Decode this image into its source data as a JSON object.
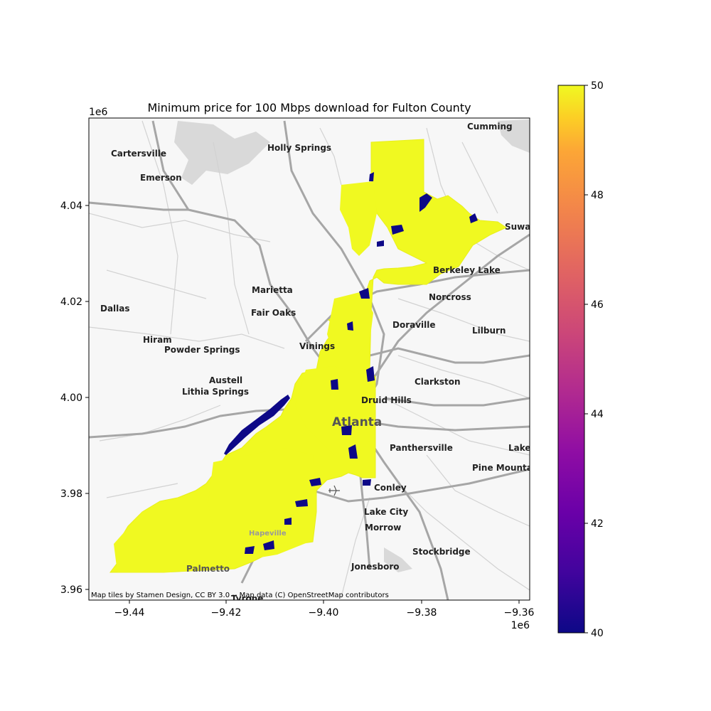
{
  "title": "Minimum price for 100 Mbps download for Fulton County",
  "attribution": "Map tiles by Stamen Design, CC BY 3.0 -- Map data (C) OpenStreetMap contributors",
  "axes": {
    "x_offset_label": "1e6",
    "y_offset_label": "1e6",
    "x_ticks": [
      "−9.44",
      "−9.42",
      "−9.40",
      "−9.38",
      "−9.36"
    ],
    "y_ticks": [
      "3.96",
      "3.98",
      "4.00",
      "4.02",
      "4.04"
    ]
  },
  "colorbar": {
    "ticks": [
      "40",
      "42",
      "44",
      "46",
      "48",
      "50"
    ],
    "min": 40,
    "max": 50,
    "colormap": "plasma"
  },
  "places": [
    {
      "name": "Cumming"
    },
    {
      "name": "Cartersville"
    },
    {
      "name": "Holly Springs"
    },
    {
      "name": "Emerson"
    },
    {
      "name": "Suwan"
    },
    {
      "name": "Berkeley Lake"
    },
    {
      "name": "Marietta"
    },
    {
      "name": "Norcross"
    },
    {
      "name": "Dallas"
    },
    {
      "name": "Fair Oaks"
    },
    {
      "name": "Doraville"
    },
    {
      "name": "Lilburn"
    },
    {
      "name": "Hiram"
    },
    {
      "name": "Powder Springs"
    },
    {
      "name": "Vinings"
    },
    {
      "name": "Austell"
    },
    {
      "name": "Clarkston"
    },
    {
      "name": "Lithia Springs"
    },
    {
      "name": "Druid Hills"
    },
    {
      "name": "Atlanta"
    },
    {
      "name": "Panthersville"
    },
    {
      "name": "Lake"
    },
    {
      "name": "Pine Mountain"
    },
    {
      "name": "Conley"
    },
    {
      "name": "Lake City"
    },
    {
      "name": "Morrow"
    },
    {
      "name": "Stockbridge"
    },
    {
      "name": "Jonesboro"
    },
    {
      "name": "Palmetto"
    },
    {
      "name": "Tyrone"
    },
    {
      "name": "Hapeville"
    }
  ],
  "chart_data": {
    "type": "choropleth",
    "title": "Minimum price for 100 Mbps download for Fulton County",
    "x_range": [
      -9450000,
      -9358000
    ],
    "y_range": [
      3957500,
      4058000
    ],
    "value_range": [
      40,
      50
    ],
    "colormap": "plasma",
    "dominant_value": 50,
    "low_value_areas": 40
  }
}
